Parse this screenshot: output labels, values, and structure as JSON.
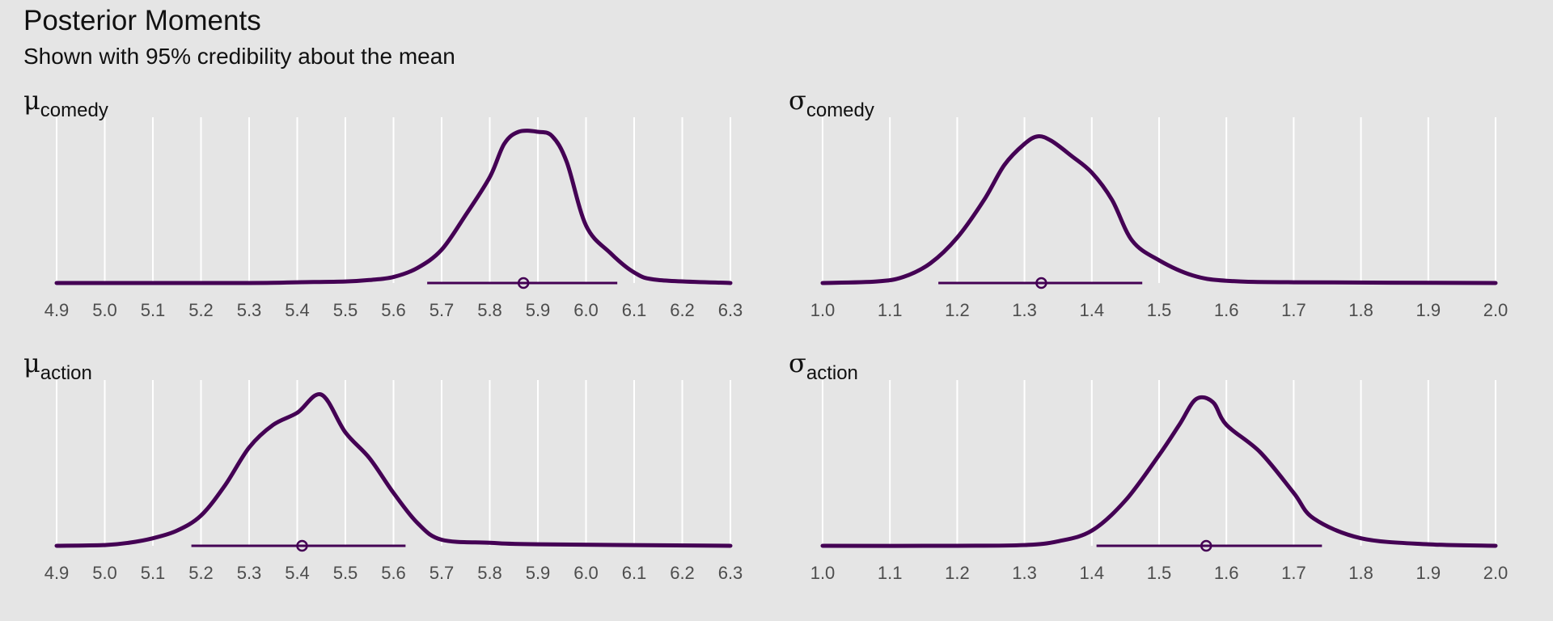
{
  "title": "Posterior Moments",
  "subtitle": "Shown with 95% credibility about the mean",
  "colors": {
    "background": "#e5e5e5",
    "grid": "#ffffff",
    "series": "#440154",
    "text": "#4d4d4d"
  },
  "chart_data": [
    {
      "type": "area",
      "panel": "mu_comedy",
      "label_symbol": "μ",
      "label_sub": "comedy",
      "xlim": [
        4.9,
        6.3
      ],
      "ticks": [
        "4.9",
        "5.0",
        "5.1",
        "5.2",
        "5.3",
        "5.4",
        "5.5",
        "5.6",
        "5.7",
        "5.8",
        "5.9",
        "6.0",
        "6.1",
        "6.2",
        "6.3"
      ],
      "mean": 5.87,
      "interval": [
        5.67,
        6.065
      ],
      "density": [
        [
          4.9,
          0
        ],
        [
          5.3,
          0
        ],
        [
          5.4,
          0.005
        ],
        [
          5.5,
          0.01
        ],
        [
          5.55,
          0.02
        ],
        [
          5.6,
          0.04
        ],
        [
          5.65,
          0.1
        ],
        [
          5.7,
          0.22
        ],
        [
          5.75,
          0.45
        ],
        [
          5.8,
          0.7
        ],
        [
          5.83,
          0.92
        ],
        [
          5.86,
          1.0
        ],
        [
          5.9,
          1.0
        ],
        [
          5.93,
          0.97
        ],
        [
          5.96,
          0.8
        ],
        [
          6.0,
          0.38
        ],
        [
          6.05,
          0.2
        ],
        [
          6.1,
          0.07
        ],
        [
          6.15,
          0.02
        ],
        [
          6.3,
          0
        ]
      ]
    },
    {
      "type": "area",
      "panel": "sigma_comedy",
      "label_symbol": "σ",
      "label_sub": "comedy",
      "xlim": [
        1.0,
        2.0
      ],
      "ticks": [
        "1.0",
        "1.1",
        "1.2",
        "1.3",
        "1.4",
        "1.5",
        "1.6",
        "1.7",
        "1.8",
        "1.9",
        "2.0"
      ],
      "mean": 1.325,
      "interval": [
        1.172,
        1.475
      ],
      "density": [
        [
          1.0,
          0
        ],
        [
          1.08,
          0.01
        ],
        [
          1.12,
          0.04
        ],
        [
          1.16,
          0.13
        ],
        [
          1.2,
          0.3
        ],
        [
          1.24,
          0.55
        ],
        [
          1.27,
          0.78
        ],
        [
          1.3,
          0.92
        ],
        [
          1.32,
          0.97
        ],
        [
          1.34,
          0.94
        ],
        [
          1.37,
          0.84
        ],
        [
          1.4,
          0.73
        ],
        [
          1.43,
          0.55
        ],
        [
          1.46,
          0.28
        ],
        [
          1.5,
          0.15
        ],
        [
          1.55,
          0.05
        ],
        [
          1.6,
          0.015
        ],
        [
          1.7,
          0.005
        ],
        [
          2.0,
          0
        ]
      ]
    },
    {
      "type": "area",
      "panel": "mu_action",
      "label_symbol": "μ",
      "label_sub": "action",
      "xlim": [
        4.9,
        6.3
      ],
      "ticks": [
        "4.9",
        "5.0",
        "5.1",
        "5.2",
        "5.3",
        "5.4",
        "5.5",
        "5.6",
        "5.7",
        "5.8",
        "5.9",
        "6.0",
        "6.1",
        "6.2",
        "6.3"
      ],
      "mean": 5.41,
      "interval": [
        5.18,
        5.625
      ],
      "density": [
        [
          4.9,
          0
        ],
        [
          5.0,
          0.005
        ],
        [
          5.05,
          0.02
        ],
        [
          5.1,
          0.05
        ],
        [
          5.15,
          0.1
        ],
        [
          5.2,
          0.2
        ],
        [
          5.25,
          0.4
        ],
        [
          5.3,
          0.65
        ],
        [
          5.35,
          0.8
        ],
        [
          5.4,
          0.88
        ],
        [
          5.45,
          1.0
        ],
        [
          5.5,
          0.75
        ],
        [
          5.55,
          0.58
        ],
        [
          5.6,
          0.35
        ],
        [
          5.65,
          0.15
        ],
        [
          5.7,
          0.04
        ],
        [
          5.8,
          0.02
        ],
        [
          5.9,
          0.01
        ],
        [
          6.3,
          0
        ]
      ]
    },
    {
      "type": "area",
      "panel": "sigma_action",
      "label_symbol": "σ",
      "label_sub": "action",
      "xlim": [
        1.0,
        2.0
      ],
      "ticks": [
        "1.0",
        "1.1",
        "1.2",
        "1.3",
        "1.4",
        "1.5",
        "1.6",
        "1.7",
        "1.8",
        "1.9",
        "2.0"
      ],
      "mean": 1.57,
      "interval": [
        1.407,
        1.742
      ],
      "density": [
        [
          1.0,
          0
        ],
        [
          1.2,
          0
        ],
        [
          1.3,
          0.005
        ],
        [
          1.35,
          0.03
        ],
        [
          1.4,
          0.1
        ],
        [
          1.45,
          0.3
        ],
        [
          1.5,
          0.6
        ],
        [
          1.53,
          0.8
        ],
        [
          1.555,
          0.97
        ],
        [
          1.58,
          0.95
        ],
        [
          1.6,
          0.8
        ],
        [
          1.65,
          0.62
        ],
        [
          1.7,
          0.35
        ],
        [
          1.73,
          0.18
        ],
        [
          1.8,
          0.05
        ],
        [
          1.9,
          0.01
        ],
        [
          2.0,
          0
        ]
      ]
    }
  ]
}
